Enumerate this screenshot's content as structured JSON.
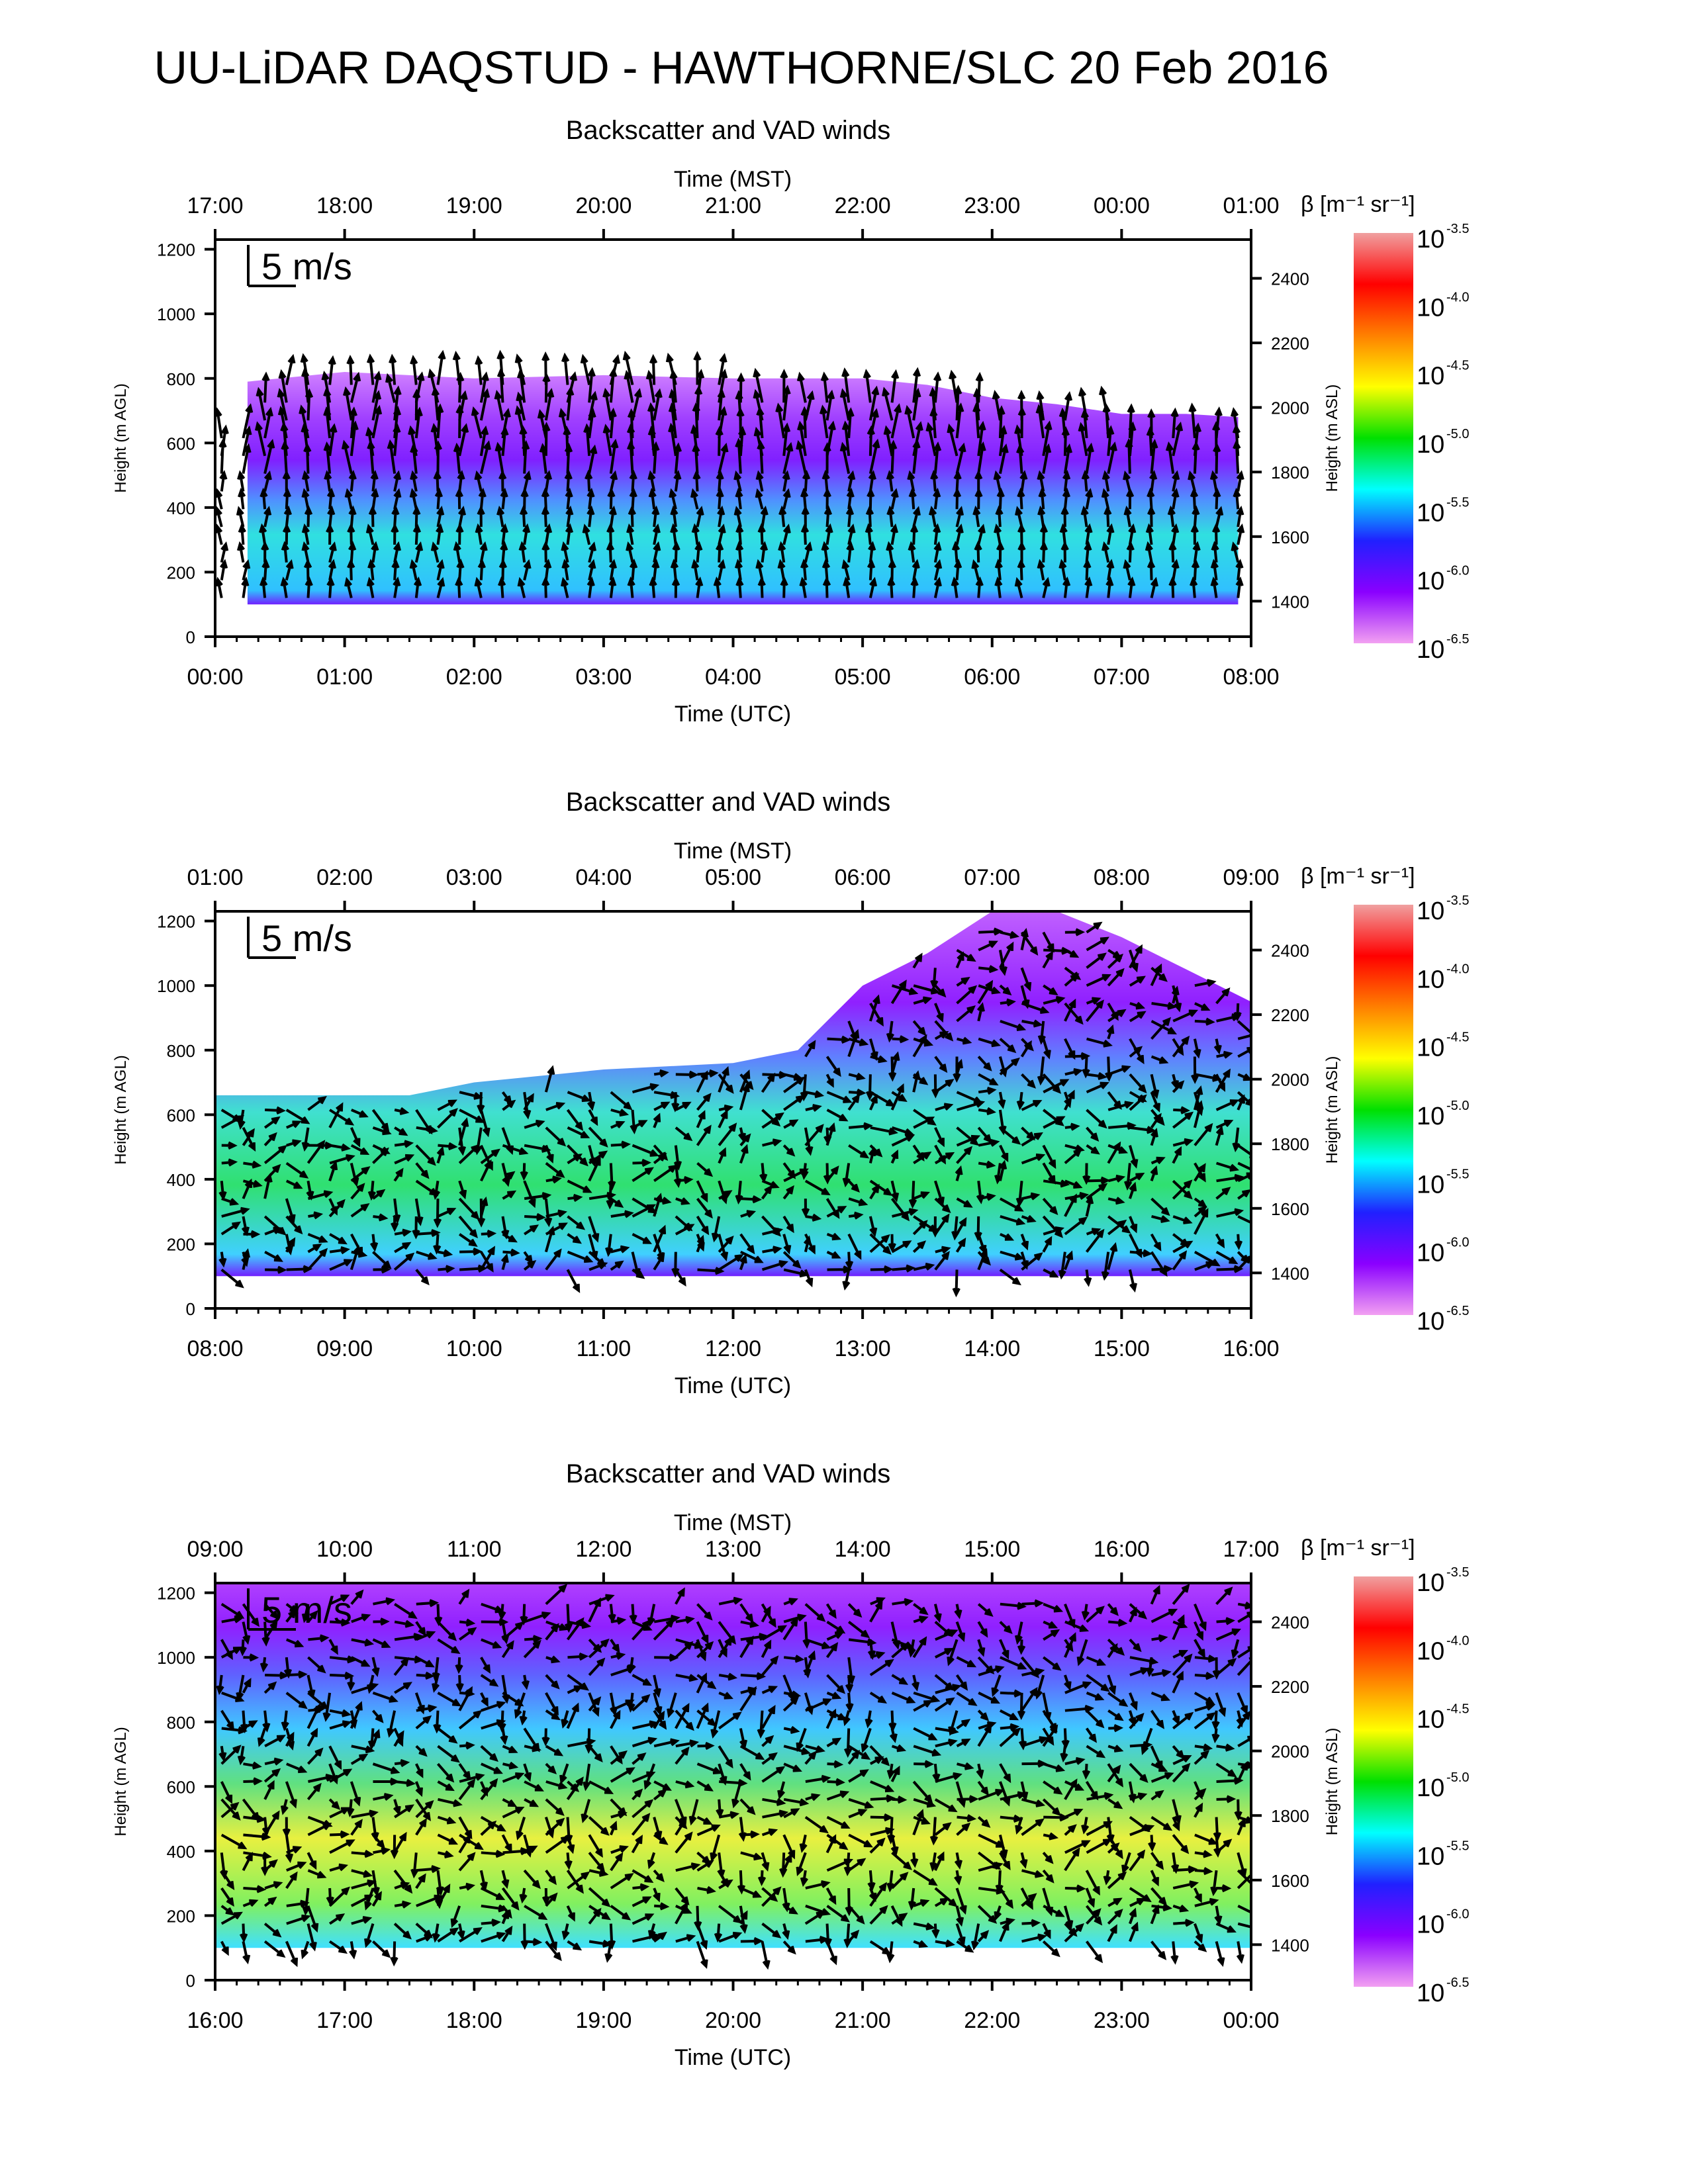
{
  "page": {
    "title": "UU-LiDAR DAQSTUD - HAWTHORNE/SLC 20 Feb 2016"
  },
  "colors": {
    "colorbar_stops": [
      "#f2a0f2",
      "#8a00ff",
      "#2020ff",
      "#00ffff",
      "#00e000",
      "#ffff00",
      "#ff8000",
      "#ff0000",
      "#f0a0a0"
    ],
    "arrow": "#000000"
  },
  "scale_label": "5 m/s",
  "chart_data": [
    {
      "type": "heatmap",
      "title": "Backscatter and VAD winds",
      "top_axis_label": "Time (MST)",
      "top_ticks": [
        "17:00",
        "18:00",
        "19:00",
        "20:00",
        "21:00",
        "22:00",
        "23:00",
        "00:00",
        "01:00"
      ],
      "xlabel": "Time (UTC)",
      "x_ticks": [
        "00:00",
        "01:00",
        "02:00",
        "03:00",
        "04:00",
        "05:00",
        "06:00",
        "07:00",
        "08:00"
      ],
      "xlim_hours": [
        0,
        8
      ],
      "ylabel": "Height (m AGL)",
      "y_ticks": [
        0,
        200,
        400,
        600,
        800,
        1000,
        1200
      ],
      "ylim": [
        0,
        1230
      ],
      "y2label": "Height (m ASL)",
      "y2_ticks": [
        1400,
        1600,
        1800,
        2000,
        2200,
        2400
      ],
      "colorbar_label": "β [m⁻¹ sr⁻¹]",
      "colorbar_ticks": [
        "-3.5",
        "-4.0",
        "-4.5",
        "-5.0",
        "-5.5",
        "-6.0",
        "-6.5"
      ],
      "colorbar_base": "10",
      "scale_arrow_ms": 5,
      "top_layer_m": [
        [
          0.25,
          790
        ],
        [
          1.0,
          820
        ],
        [
          2.0,
          800
        ],
        [
          3.0,
          810
        ],
        [
          4.0,
          800
        ],
        [
          5.0,
          800
        ],
        [
          5.5,
          780
        ],
        [
          6.0,
          740
        ],
        [
          6.5,
          720
        ],
        [
          7.0,
          690
        ],
        [
          7.5,
          690
        ],
        [
          7.9,
          680
        ]
      ]
    },
    {
      "type": "heatmap",
      "title": "Backscatter and VAD winds",
      "top_axis_label": "Time (MST)",
      "top_ticks": [
        "01:00",
        "02:00",
        "03:00",
        "04:00",
        "05:00",
        "06:00",
        "07:00",
        "08:00",
        "09:00"
      ],
      "xlabel": "Time (UTC)",
      "x_ticks": [
        "08:00",
        "09:00",
        "10:00",
        "11:00",
        "12:00",
        "13:00",
        "14:00",
        "15:00",
        "16:00"
      ],
      "xlim_hours": [
        8,
        16
      ],
      "ylabel": "Height (m AGL)",
      "y_ticks": [
        0,
        200,
        400,
        600,
        800,
        1000,
        1200
      ],
      "ylim": [
        0,
        1230
      ],
      "y2label": "Height (m ASL)",
      "y2_ticks": [
        1400,
        1600,
        1800,
        2000,
        2200,
        2400
      ],
      "colorbar_label": "β [m⁻¹ sr⁻¹]",
      "colorbar_ticks": [
        "-3.5",
        "-4.0",
        "-4.5",
        "-5.0",
        "-5.5",
        "-6.0",
        "-6.5"
      ],
      "colorbar_base": "10",
      "scale_arrow_ms": 5,
      "top_layer_m": [
        [
          8.0,
          660
        ],
        [
          9.5,
          660
        ],
        [
          10.0,
          700
        ],
        [
          11.0,
          740
        ],
        [
          12.0,
          760
        ],
        [
          12.5,
          800
        ],
        [
          13.0,
          1000
        ],
        [
          13.5,
          1100
        ],
        [
          14.0,
          1230
        ],
        [
          14.5,
          1230
        ],
        [
          15.0,
          1150
        ],
        [
          15.5,
          1050
        ],
        [
          16.0,
          950
        ]
      ]
    },
    {
      "type": "heatmap",
      "title": "Backscatter and VAD winds",
      "top_axis_label": "Time (MST)",
      "top_ticks": [
        "09:00",
        "10:00",
        "11:00",
        "12:00",
        "13:00",
        "14:00",
        "15:00",
        "16:00",
        "17:00"
      ],
      "xlabel": "Time (UTC)",
      "x_ticks": [
        "16:00",
        "17:00",
        "18:00",
        "19:00",
        "20:00",
        "21:00",
        "22:00",
        "23:00",
        "00:00"
      ],
      "xlim_hours": [
        16,
        24
      ],
      "ylabel": "Height (m AGL)",
      "y_ticks": [
        0,
        200,
        400,
        600,
        800,
        1000,
        1200
      ],
      "ylim": [
        0,
        1230
      ],
      "y2label": "Height (m ASL)",
      "y2_ticks": [
        1400,
        1600,
        1800,
        2000,
        2200,
        2400
      ],
      "colorbar_label": "β [m⁻¹ sr⁻¹]",
      "colorbar_ticks": [
        "-3.5",
        "-4.0",
        "-4.5",
        "-5.0",
        "-5.5",
        "-6.0",
        "-6.5"
      ],
      "colorbar_base": "10",
      "scale_arrow_ms": 5,
      "top_layer_m": [
        [
          16.0,
          1230
        ],
        [
          24.0,
          1230
        ]
      ]
    }
  ]
}
